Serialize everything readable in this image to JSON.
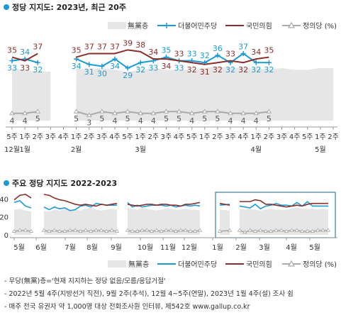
{
  "chart_data": [
    {
      "type": "line",
      "title": "정당 지지도: 2023년, 최근 20주",
      "legend": {
        "placement": "top-right",
        "unit_label": "(%)"
      },
      "categories": [
        "5주",
        "1주",
        "2주",
        "3주",
        "4주",
        "1주",
        "2주",
        "3주",
        "4주",
        "5주",
        "1주",
        "2주",
        "3주",
        "4주",
        "5주",
        "1주",
        "2주",
        "3주",
        "4주",
        "1주",
        "2주",
        "3주",
        "4주",
        "5주",
        "1주",
        "2주"
      ],
      "month_labels": [
        {
          "label": "12월",
          "at": 0
        },
        {
          "label": "1월",
          "at": 1
        },
        {
          "label": "2월",
          "at": 5
        },
        {
          "label": "3월",
          "at": 10
        },
        {
          "label": "4월",
          "at": 19
        },
        {
          "label": "5월",
          "at": 24
        }
      ],
      "gap_after_index": 4,
      "series": [
        {
          "name": "無黨층",
          "kind": "area",
          "color": "#e6e6e6",
          "values": [
            29,
            28,
            27,
            27,
            null,
            29,
            28,
            29,
            28,
            27,
            28,
            29,
            28,
            28,
            28,
            29,
            30,
            29,
            29,
            29,
            28,
            29,
            28,
            28,
            29,
            29
          ]
        },
        {
          "name": "더불어민주당",
          "kind": "line",
          "color": "#1a9ad6",
          "values": [
            33,
            34,
            32,
            null,
            null,
            34,
            31,
            30,
            34,
            29,
            32,
            33,
            35,
            33,
            33,
            32,
            36,
            32,
            37,
            32,
            32,
            null,
            null,
            null,
            null,
            null
          ],
          "labels": [
            33,
            34,
            32,
            null,
            null,
            34,
            31,
            30,
            34,
            29,
            32,
            33,
            35,
            33,
            33,
            32,
            36,
            32,
            37,
            32,
            32,
            null,
            null,
            null,
            null,
            null
          ]
        },
        {
          "name": "국민의힘",
          "kind": "line",
          "color": "#8b2e2a",
          "values": [
            35,
            33,
            37,
            null,
            null,
            35,
            37,
            37,
            37,
            39,
            38,
            34,
            34,
            33,
            32,
            31,
            32,
            33,
            32,
            34,
            35,
            null,
            null,
            null,
            null,
            null
          ],
          "labels": [
            35,
            33,
            37,
            null,
            null,
            35,
            37,
            37,
            37,
            39,
            38,
            34,
            34,
            33,
            32,
            31,
            32,
            33,
            32,
            34,
            35,
            null,
            null,
            null,
            null,
            null
          ]
        },
        {
          "name": "정의당 (%)",
          "kind": "line",
          "color": "#aaaaaa",
          "values": [
            4,
            4,
            5,
            null,
            null,
            5,
            3,
            5,
            4,
            5,
            4,
            4,
            5,
            5,
            4,
            5,
            5,
            4,
            4,
            4,
            5,
            null,
            null,
            null,
            null,
            null
          ],
          "labels": [
            4,
            4,
            5,
            null,
            null,
            5,
            3,
            5,
            4,
            5,
            4,
            4,
            5,
            5,
            4,
            5,
            5,
            4,
            4,
            4,
            5,
            null,
            null,
            null,
            null,
            null
          ]
        }
      ],
      "ylim": [
        0,
        45
      ]
    },
    {
      "type": "line",
      "title": "주요 정당 지지도 2022-2023",
      "legend": {
        "placement": "bottom-right"
      },
      "month_ticks": [
        "5월",
        "6월",
        "7월",
        "8월",
        "9월",
        "10월",
        "11월",
        "12월",
        "1월",
        "2월",
        "3월",
        "4월",
        "5월"
      ],
      "yticks": [
        0,
        20,
        40
      ],
      "ylim": [
        0,
        45
      ],
      "series": [
        {
          "name": "無黨층",
          "kind": "area",
          "color": "#e6e6e6",
          "segments": [
            [
              28,
              29,
              27,
              26
            ],
            [
              27,
              26,
              28,
              27,
              29,
              28,
              28,
              27,
              29,
              30,
              28,
              27,
              28,
              29,
              28
            ],
            [
              30,
              29,
              28,
              30,
              29,
              28,
              27,
              28,
              29,
              29,
              28,
              28,
              29,
              28,
              28,
              27
            ],
            [
              28,
              27
            ],
            [
              29,
              28,
              29,
              28,
              27,
              28,
              29,
              28,
              28,
              28,
              29,
              30,
              29,
              29,
              29,
              28,
              29,
              28
            ]
          ]
        },
        {
          "name": "더불어민주당",
          "kind": "line",
          "color": "#1a9ad6",
          "segments": [
            [
              36,
              38,
              32,
              30
            ],
            [
              31,
              28,
              31,
              29,
              30,
              27,
              28,
              32,
              33,
              31,
              35,
              34,
              33,
              33,
              33
            ],
            [
              36,
              31,
              33,
              31,
              32,
              33,
              33,
              33,
              32,
              33,
              31,
              32,
              33,
              32,
              33,
              32
            ],
            [
              33,
              34
            ],
            [
              32,
              31,
              30,
              34,
              29,
              32,
              33,
              35,
              33,
              33,
              32,
              36,
              32,
              37,
              32,
              32,
              32,
              32
            ]
          ]
        },
        {
          "name": "국민의힘",
          "kind": "line",
          "color": "#8b2e2a",
          "segments": [
            [
              39,
              44,
              45,
              41
            ],
            [
              45,
              44,
              41,
              39,
              38,
              36,
              34,
              33,
              34,
              33,
              32,
              34,
              33,
              34,
              35
            ],
            [
              34,
              33,
              32,
              33,
              34,
              34,
              33,
              34,
              34,
              33,
              33,
              32,
              34,
              34,
              35,
              36
            ],
            [
              35,
              33
            ],
            [
              37,
              37,
              37,
              39,
              38,
              34,
              34,
              33,
              32,
              31,
              32,
              33,
              32,
              34,
              35,
              35,
              35,
              35
            ]
          ]
        },
        {
          "name": "정의당",
          "kind": "line",
          "color": "#aaaaaa",
          "segments": [
            [
              4,
              5,
              5,
              4
            ],
            [
              5,
              4,
              5,
              4,
              4,
              5,
              5,
              4,
              5,
              4,
              5,
              5,
              4,
              5,
              4
            ],
            [
              5,
              4,
              4,
              5,
              5,
              4,
              5,
              4,
              5,
              5,
              4,
              5,
              5,
              4,
              4,
              5
            ],
            [
              4,
              5
            ],
            [
              5,
              3,
              5,
              4,
              5,
              4,
              4,
              5,
              5,
              4,
              5,
              5,
              4,
              4,
              4,
              5,
              5,
              5
            ]
          ]
        }
      ]
    }
  ],
  "legend_top": {
    "items": [
      "無黨층",
      "더불어민주당",
      "국민의힘",
      "정의당 (%)"
    ]
  },
  "legend_bottom": {
    "items": [
      "無黨층",
      "더불어민주당",
      "국민의힘",
      "정의당 (%)"
    ]
  },
  "notes": [
    "- 무당(無黨)층='현재 지지하는 정당 없음/모름/응답거절'",
    "- 2022년 5월 4주(지방선거 직전), 9월 2주(추석), 12월 4~5주(연말), 2023년 1월 4주(설) 조사 쉼",
    "- 매주 전국 유권자 약 1,000명 대상 전화조사원 인터뷰, 제542호 www.gallup.co.kr"
  ],
  "colors": {
    "minju": "#1a9ad6",
    "ppp": "#8b2e2a",
    "justice": "#aaaaaa",
    "nonpartisan": "#e6e6e6",
    "title_dot": "#1a9ad6"
  }
}
